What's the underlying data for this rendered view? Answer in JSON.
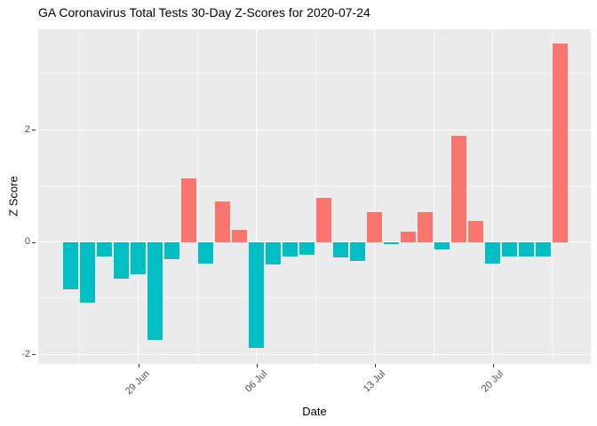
{
  "chart_data": {
    "type": "bar",
    "title": "GA Coronavirus Total Tests 30-Day Z-Scores for 2020-07-24",
    "xlabel": "Date",
    "ylabel": "Z Score",
    "dates": [
      "2020-06-25",
      "2020-06-26",
      "2020-06-27",
      "2020-06-28",
      "2020-06-29",
      "2020-06-30",
      "2020-07-01",
      "2020-07-02",
      "2020-07-03",
      "2020-07-04",
      "2020-07-05",
      "2020-07-06",
      "2020-07-07",
      "2020-07-08",
      "2020-07-09",
      "2020-07-10",
      "2020-07-11",
      "2020-07-12",
      "2020-07-13",
      "2020-07-14",
      "2020-07-15",
      "2020-07-16",
      "2020-07-17",
      "2020-07-18",
      "2020-07-19",
      "2020-07-20",
      "2020-07-21",
      "2020-07-22",
      "2020-07-23",
      "2020-07-24"
    ],
    "values": [
      -0.84,
      -1.08,
      -0.25,
      -0.65,
      -0.58,
      -1.74,
      -0.3,
      1.13,
      -0.39,
      0.73,
      0.22,
      -1.88,
      -0.4,
      -0.26,
      -0.23,
      0.79,
      -0.27,
      -0.34,
      0.53,
      -0.04,
      0.18,
      0.53,
      -0.13,
      1.9,
      0.38,
      -0.38,
      -0.25,
      -0.25,
      -0.25,
      3.53
    ],
    "x_ticks": [
      {
        "label": "29 Jun",
        "day_index": 4
      },
      {
        "label": "06 Jul",
        "day_index": 11
      },
      {
        "label": "13 Jul",
        "day_index": 18
      },
      {
        "label": "20 Jul",
        "day_index": 25
      }
    ],
    "x_minor_day_indices": [
      0.5,
      7.5,
      14.5,
      21.5,
      28.5
    ],
    "y_ticks": [
      {
        "label": "2",
        "value": 2
      },
      {
        "label": "0",
        "value": 0
      },
      {
        "label": "-2",
        "value": -2
      }
    ],
    "y_minor_values": [
      3,
      1,
      -1
    ],
    "ylim": [
      -2.17,
      3.79
    ],
    "xlim_day_index": [
      -1.93,
      30.8
    ],
    "colors": {
      "positive_bar": "#F8766D",
      "negative_bar": "#00BFC4",
      "panel_bg": "#EBEBEB",
      "grid": "#FFFFFF",
      "tick_label": "#4D4D4D",
      "tick_mark": "#333333",
      "text": "#000000"
    },
    "legend": "none",
    "grid": "on"
  }
}
